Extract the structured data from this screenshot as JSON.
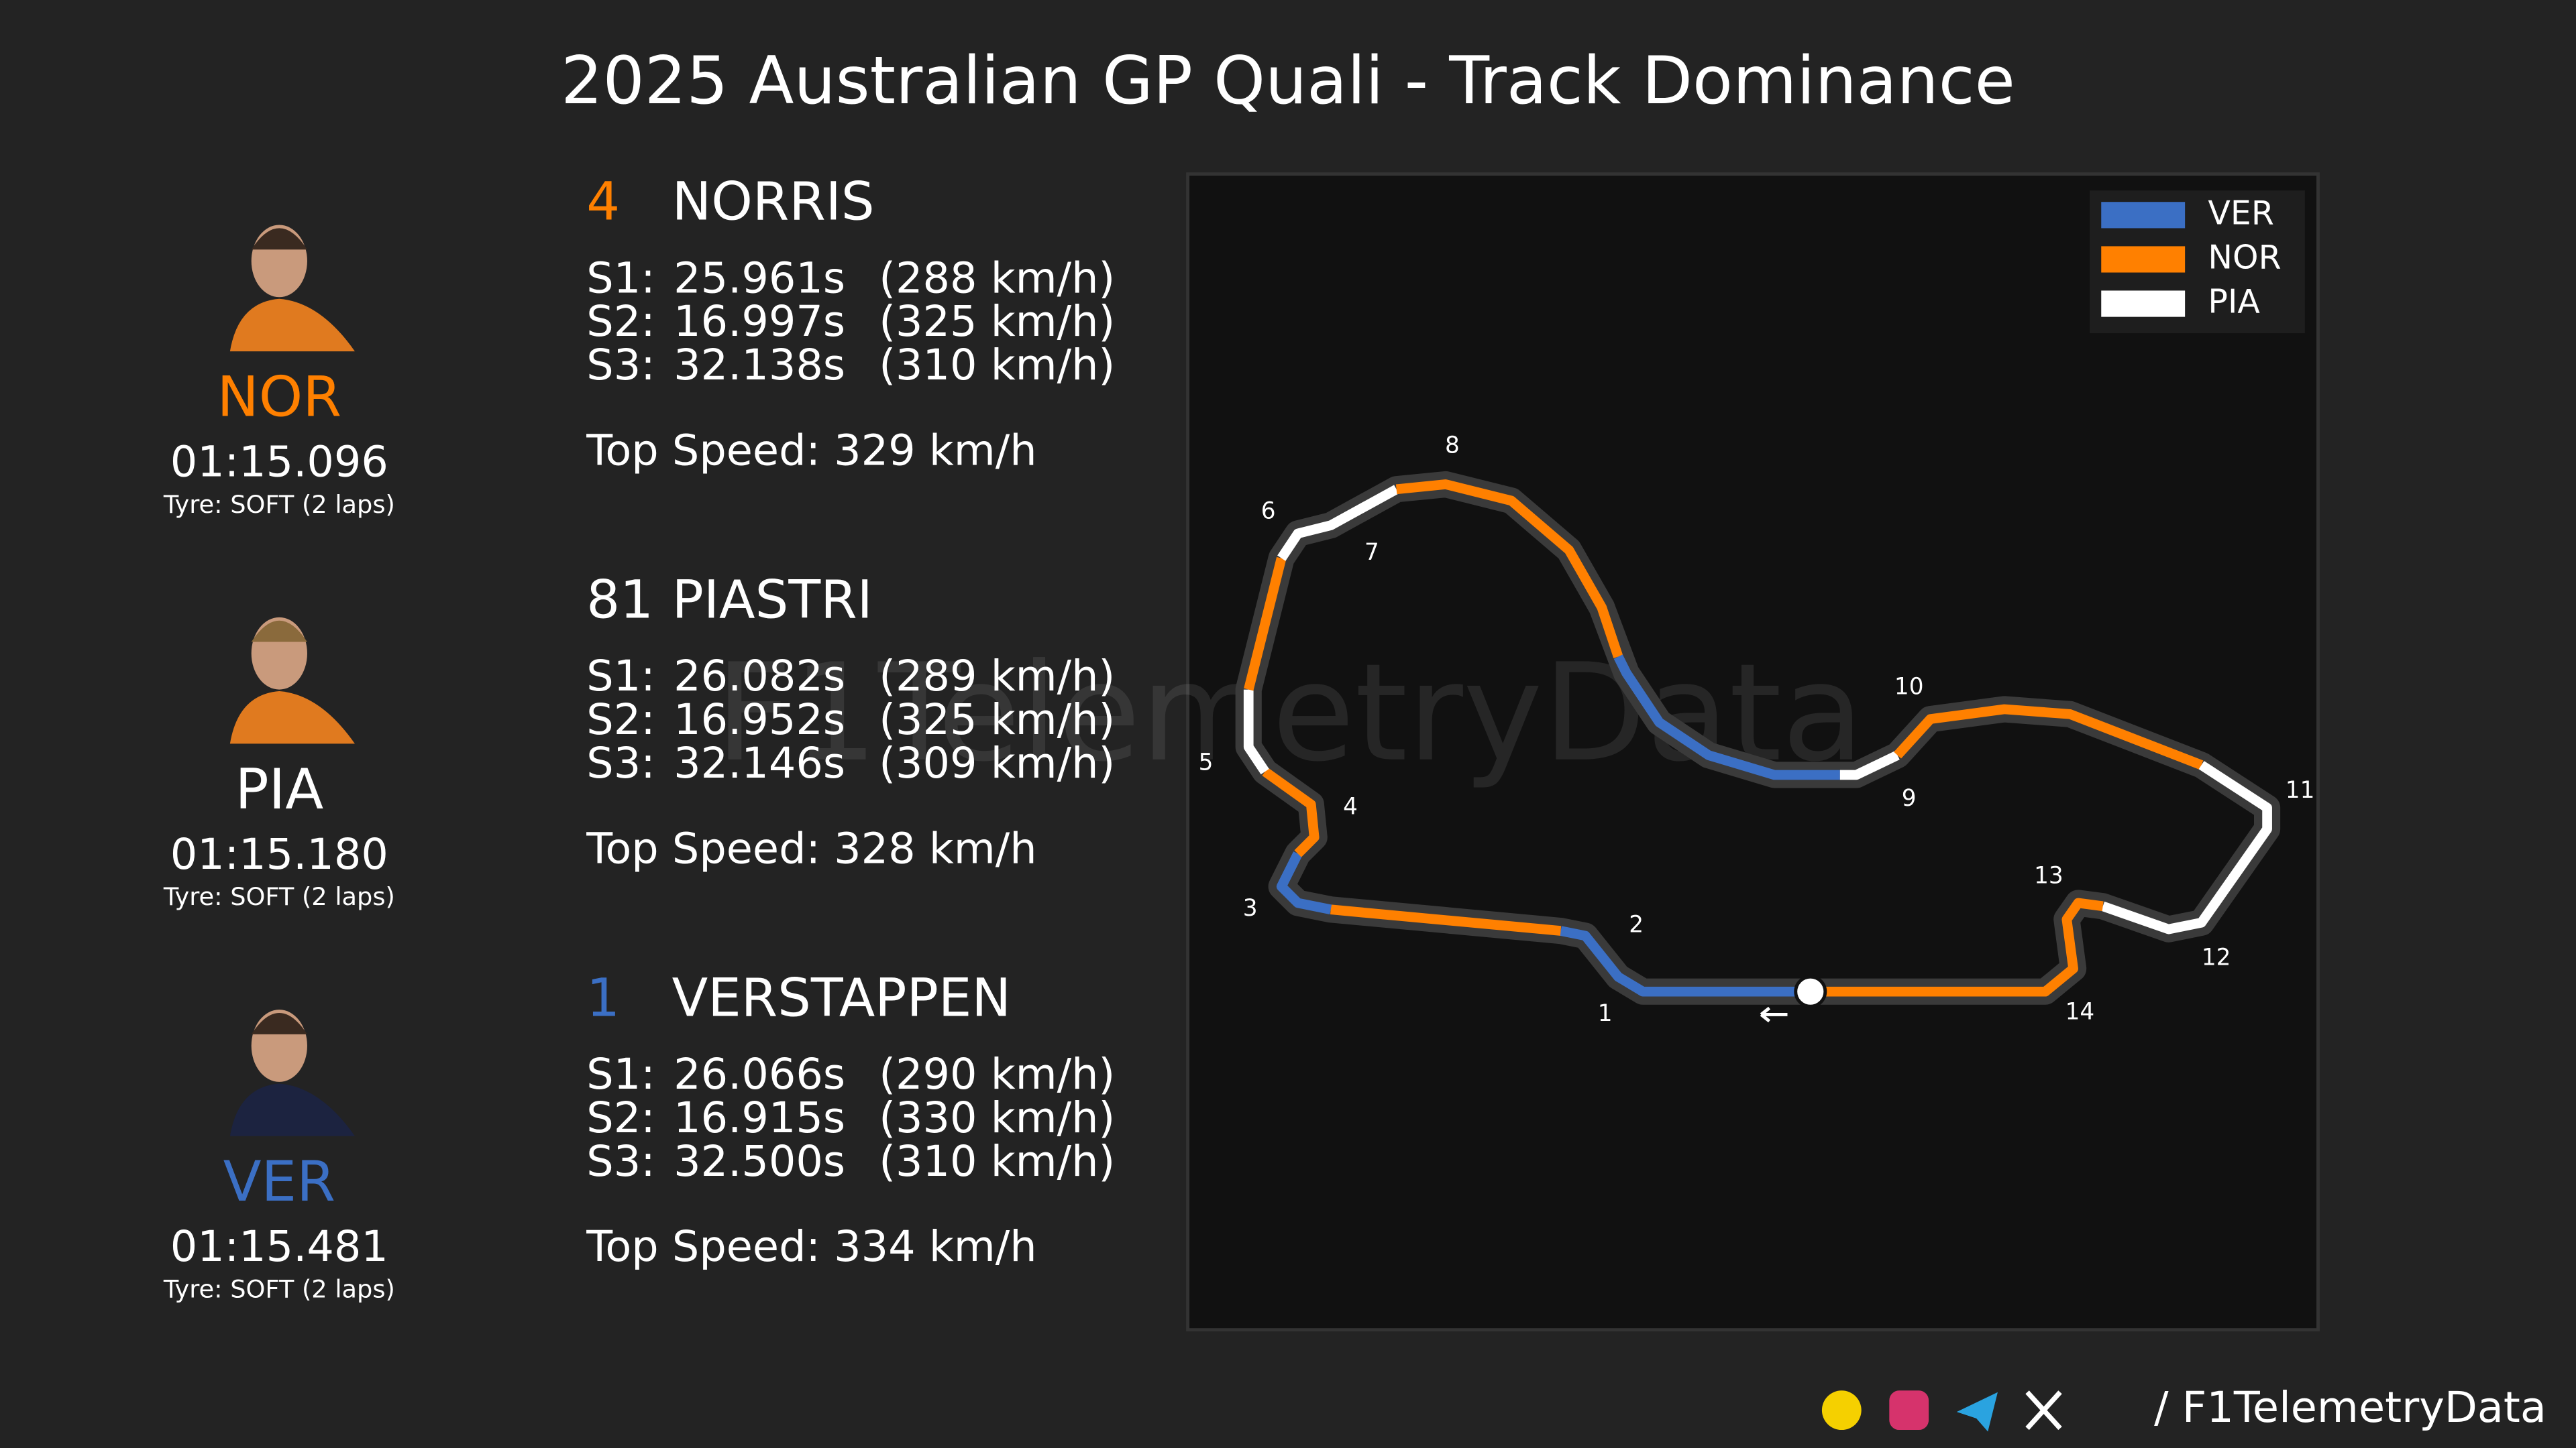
{
  "title": "2025 Australian GP Quali - Track Dominance",
  "drivers": [
    {
      "code": "NOR",
      "number": "4",
      "name": "NORRIS",
      "color": "#ff8000",
      "lap_time": "01:15.096",
      "tyre": "Tyre: SOFT (2 laps)",
      "sectors": [
        [
          "S1:",
          "25.961s",
          "(288 km/h)"
        ],
        [
          "S2:",
          "16.997s",
          "(325 km/h)"
        ],
        [
          "S3:",
          "32.138s",
          "(310 km/h)"
        ]
      ],
      "top_speed": "Top Speed: 329 km/h"
    },
    {
      "code": "PIA",
      "number": "81",
      "name": "PIASTRI",
      "color": "#ffffff",
      "lap_time": "01:15.180",
      "tyre": "Tyre: SOFT (2 laps)",
      "sectors": [
        [
          "S1:",
          "26.082s",
          "(289 km/h)"
        ],
        [
          "S2:",
          "16.952s",
          "(325 km/h)"
        ],
        [
          "S3:",
          "32.146s",
          "(309 km/h)"
        ]
      ],
      "top_speed": "Top Speed: 328 km/h"
    },
    {
      "code": "VER",
      "number": "1",
      "name": "VERSTAPPEN",
      "color": "#3b6fc4",
      "lap_time": "01:15.481",
      "tyre": "Tyre: SOFT (2 laps)",
      "sectors": [
        [
          "S1:",
          "26.066s",
          "(290 km/h)"
        ],
        [
          "S2:",
          "16.915s",
          "(330 km/h)"
        ],
        [
          "S3:",
          "32.500s",
          "(310 km/h)"
        ]
      ],
      "top_speed": "Top Speed: 334 km/h"
    }
  ],
  "legend": [
    {
      "label": "VER",
      "color": "#3b6fc4"
    },
    {
      "label": "NOR",
      "color": "#ff8000"
    },
    {
      "label": "PIA",
      "color": "#ffffff"
    }
  ],
  "corners": [
    "1",
    "2",
    "3",
    "4",
    "5",
    "6",
    "7",
    "8",
    "9",
    "10",
    "11",
    "12",
    "13",
    "14"
  ],
  "watermark": "F1TelemetryData",
  "footer": "/ F1TelemetryData"
}
